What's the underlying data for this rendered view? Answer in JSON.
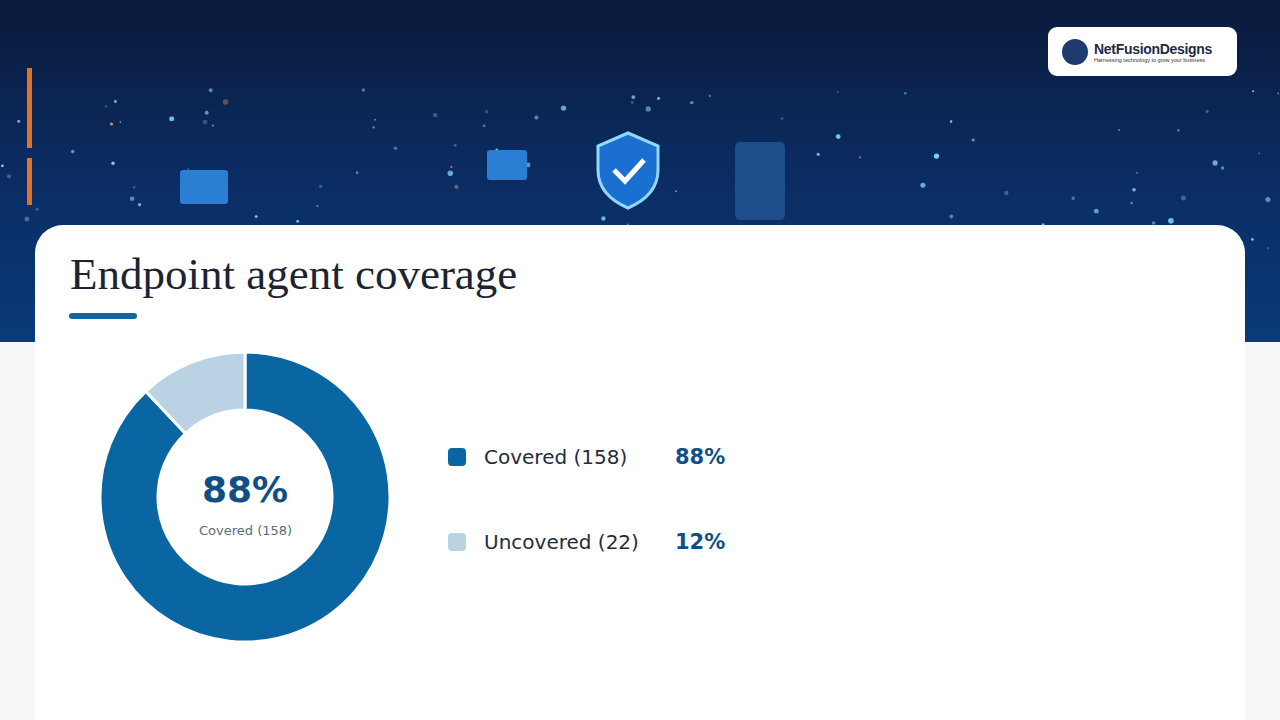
{
  "header": {
    "logo": {
      "name": "NetFusionDesigns",
      "tagline": "Harnessing technology to grow your business"
    }
  },
  "chart_data": {
    "type": "donut",
    "title": "Endpoint agent coverage",
    "categories": [
      "Covered (158)",
      "Uncovered (22)"
    ],
    "values": [
      88,
      12
    ],
    "value_labels": [
      "88%",
      "12%"
    ],
    "colors": [
      "#0a66a3",
      "#b9d3e5"
    ],
    "annotations": [
      "88%",
      "Covered (158)"
    ],
    "legend": "right",
    "data_labels": false
  }
}
